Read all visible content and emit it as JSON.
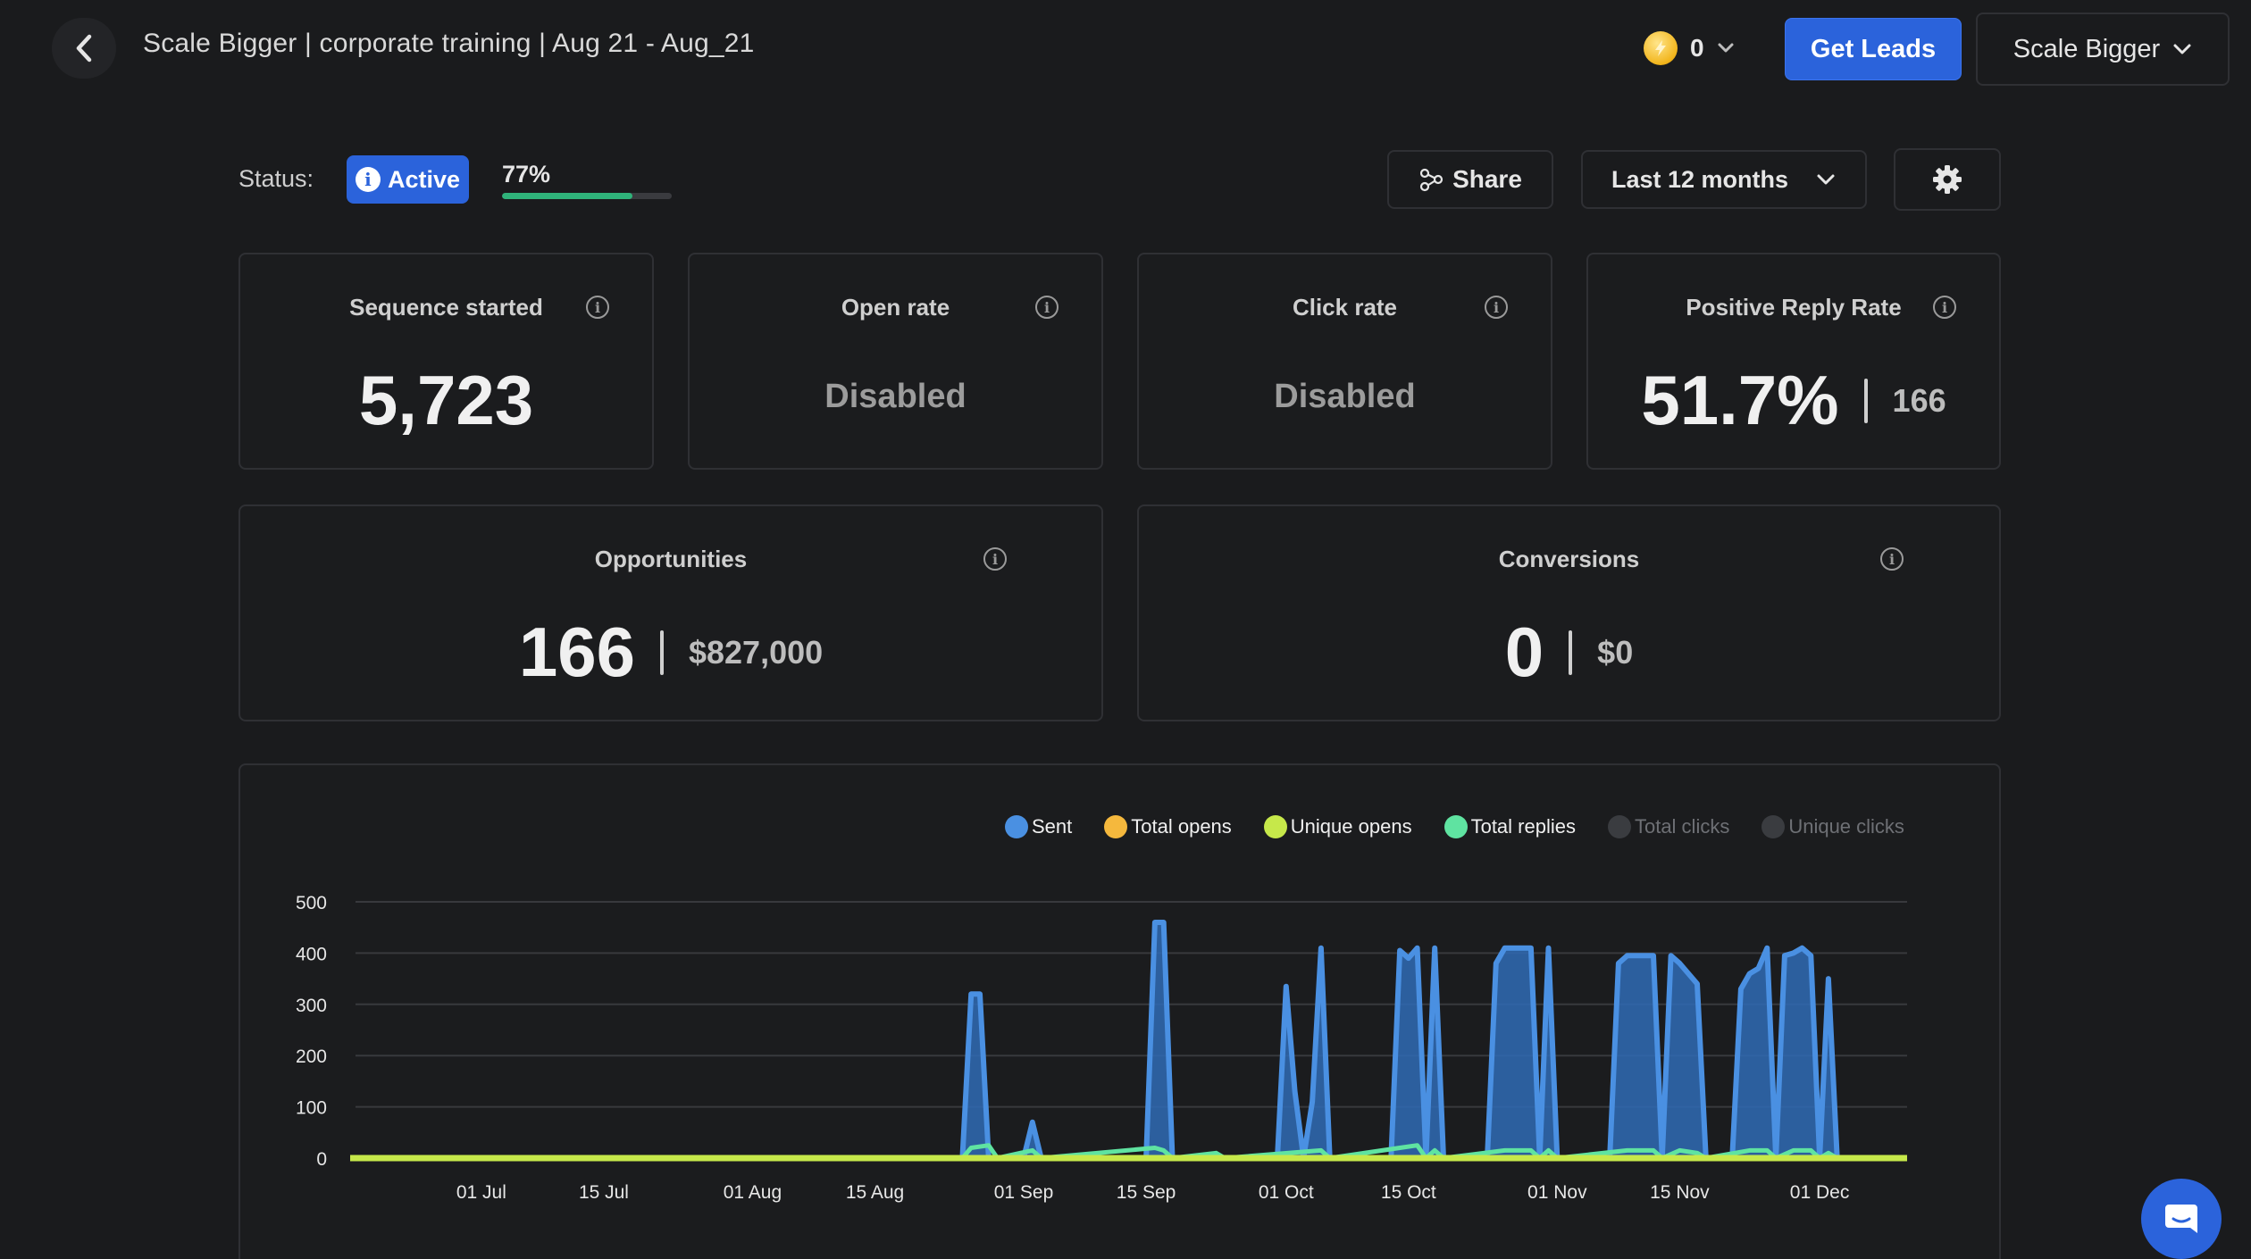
{
  "header": {
    "title": "Scale Bigger | corporate training | Aug 21 - Aug_21",
    "credits": "0",
    "get_leads_label": "Get Leads",
    "account_label": "Scale Bigger"
  },
  "status": {
    "label": "Status:",
    "badge": "Active",
    "progress_text": "77%",
    "progress": 0.77
  },
  "toolbar": {
    "share_label": "Share",
    "range_label": "Last 12 months"
  },
  "cards": {
    "sequence_started": {
      "title": "Sequence started",
      "value": "5,723"
    },
    "open_rate": {
      "title": "Open rate",
      "value": "Disabled"
    },
    "click_rate": {
      "title": "Click rate",
      "value": "Disabled"
    },
    "positive_reply": {
      "title": "Positive Reply Rate",
      "value": "51.7%",
      "sub": "166"
    },
    "opportunities": {
      "title": "Opportunities",
      "value": "166",
      "sub": "$827,000"
    },
    "conversions": {
      "title": "Conversions",
      "value": "0",
      "sub": "$0"
    }
  },
  "colors": {
    "accent": "#2b63db",
    "sent": "#4a90e2",
    "total_opens": "#f5b83d",
    "unique_opens": "#c6e84a",
    "total_replies": "#5fe3a1",
    "disabled_series": "#3a3c40"
  },
  "chart_data": {
    "type": "area",
    "legend": [
      {
        "name": "Sent",
        "color": "#4a90e2",
        "enabled": true
      },
      {
        "name": "Total opens",
        "color": "#f5b83d",
        "enabled": true
      },
      {
        "name": "Unique opens",
        "color": "#c6e84a",
        "enabled": true
      },
      {
        "name": "Total replies",
        "color": "#5fe3a1",
        "enabled": true
      },
      {
        "name": "Total clicks",
        "color": "#3a3c40",
        "enabled": false
      },
      {
        "name": "Unique clicks",
        "color": "#3a3c40",
        "enabled": false
      }
    ],
    "y_ticks": [
      "500",
      "400",
      "300",
      "200",
      "100",
      "0"
    ],
    "ylim": [
      0,
      500
    ],
    "x_ticks": [
      {
        "label": "01 Jul",
        "date": "2023-07-01"
      },
      {
        "label": "15 Jul",
        "date": "2023-07-15"
      },
      {
        "label": "01 Aug",
        "date": "2023-08-01"
      },
      {
        "label": "15 Aug",
        "date": "2023-08-15"
      },
      {
        "label": "01 Sep",
        "date": "2023-09-01"
      },
      {
        "label": "15 Sep",
        "date": "2023-09-15"
      },
      {
        "label": "01 Oct",
        "date": "2023-10-01"
      },
      {
        "label": "15 Oct",
        "date": "2023-10-15"
      },
      {
        "label": "01 Nov",
        "date": "2023-11-01"
      },
      {
        "label": "15 Nov",
        "date": "2023-11-15"
      },
      {
        "label": "01 Dec",
        "date": "2023-12-01"
      }
    ],
    "x_range": [
      "2023-06-16",
      "2023-12-11"
    ],
    "series": [
      {
        "name": "Sent",
        "points": [
          [
            "2023-06-16",
            0
          ],
          [
            "2023-08-25",
            0
          ],
          [
            "2023-08-26",
            320
          ],
          [
            "2023-08-27",
            320
          ],
          [
            "2023-08-28",
            0
          ],
          [
            "2023-09-01",
            0
          ],
          [
            "2023-09-02",
            70
          ],
          [
            "2023-09-03",
            0
          ],
          [
            "2023-09-15",
            0
          ],
          [
            "2023-09-16",
            460
          ],
          [
            "2023-09-17",
            460
          ],
          [
            "2023-09-18",
            0
          ],
          [
            "2023-09-30",
            0
          ],
          [
            "2023-10-01",
            335
          ],
          [
            "2023-10-02",
            130
          ],
          [
            "2023-10-03",
            0
          ],
          [
            "2023-10-04",
            110
          ],
          [
            "2023-10-05",
            410
          ],
          [
            "2023-10-06",
            0
          ],
          [
            "2023-10-13",
            0
          ],
          [
            "2023-10-14",
            405
          ],
          [
            "2023-10-15",
            390
          ],
          [
            "2023-10-16",
            410
          ],
          [
            "2023-10-17",
            0
          ],
          [
            "2023-10-18",
            410
          ],
          [
            "2023-10-19",
            0
          ],
          [
            "2023-10-24",
            0
          ],
          [
            "2023-10-25",
            380
          ],
          [
            "2023-10-26",
            410
          ],
          [
            "2023-10-29",
            410
          ],
          [
            "2023-10-30",
            0
          ],
          [
            "2023-10-31",
            410
          ],
          [
            "2023-11-01",
            0
          ],
          [
            "2023-11-07",
            0
          ],
          [
            "2023-11-08",
            380
          ],
          [
            "2023-11-09",
            395
          ],
          [
            "2023-11-12",
            395
          ],
          [
            "2023-11-13",
            0
          ],
          [
            "2023-11-14",
            395
          ],
          [
            "2023-11-15",
            380
          ],
          [
            "2023-11-17",
            340
          ],
          [
            "2023-11-18",
            0
          ],
          [
            "2023-11-21",
            0
          ],
          [
            "2023-11-22",
            330
          ],
          [
            "2023-11-23",
            360
          ],
          [
            "2023-11-24",
            370
          ],
          [
            "2023-11-25",
            410
          ],
          [
            "2023-11-26",
            0
          ],
          [
            "2023-11-27",
            395
          ],
          [
            "2023-11-28",
            400
          ],
          [
            "2023-11-29",
            410
          ],
          [
            "2023-11-30",
            395
          ],
          [
            "2023-12-01",
            0
          ],
          [
            "2023-12-02",
            350
          ],
          [
            "2023-12-03",
            0
          ],
          [
            "2023-12-11",
            0
          ]
        ]
      },
      {
        "name": "Total replies",
        "points": [
          [
            "2023-06-16",
            0
          ],
          [
            "2023-08-25",
            0
          ],
          [
            "2023-08-26",
            20
          ],
          [
            "2023-08-28",
            25
          ],
          [
            "2023-08-29",
            0
          ],
          [
            "2023-09-02",
            15
          ],
          [
            "2023-09-03",
            0
          ],
          [
            "2023-09-16",
            20
          ],
          [
            "2023-09-17",
            15
          ],
          [
            "2023-09-18",
            0
          ],
          [
            "2023-09-23",
            10
          ],
          [
            "2023-09-24",
            0
          ],
          [
            "2023-10-05",
            15
          ],
          [
            "2023-10-06",
            0
          ],
          [
            "2023-10-14",
            20
          ],
          [
            "2023-10-16",
            25
          ],
          [
            "2023-10-17",
            0
          ],
          [
            "2023-10-18",
            15
          ],
          [
            "2023-10-19",
            0
          ],
          [
            "2023-10-26",
            15
          ],
          [
            "2023-10-29",
            15
          ],
          [
            "2023-10-30",
            0
          ],
          [
            "2023-10-31",
            15
          ],
          [
            "2023-11-01",
            0
          ],
          [
            "2023-11-09",
            15
          ],
          [
            "2023-11-12",
            15
          ],
          [
            "2023-11-13",
            0
          ],
          [
            "2023-11-15",
            15
          ],
          [
            "2023-11-17",
            10
          ],
          [
            "2023-11-18",
            0
          ],
          [
            "2023-11-23",
            15
          ],
          [
            "2023-11-25",
            15
          ],
          [
            "2023-11-26",
            0
          ],
          [
            "2023-11-28",
            15
          ],
          [
            "2023-11-30",
            15
          ],
          [
            "2023-12-01",
            0
          ],
          [
            "2023-12-02",
            10
          ],
          [
            "2023-12-03",
            0
          ],
          [
            "2023-12-11",
            0
          ]
        ]
      },
      {
        "name": "Unique opens",
        "points": [
          [
            "2023-06-16",
            0
          ],
          [
            "2023-12-11",
            0
          ]
        ]
      }
    ]
  }
}
